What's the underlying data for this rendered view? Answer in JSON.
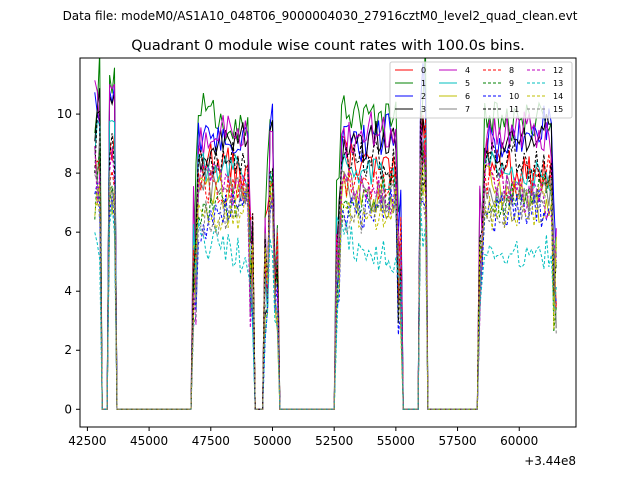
{
  "figure": {
    "suptitle": "Data file: modeM0/AS1A10_048T06_9000004030_27916cztM0_level2_quad_clean.evt"
  },
  "chart_data": {
    "type": "line",
    "title": "Quadrant 0 module wise count rates with 100.0s bins.",
    "xlabel": "",
    "ylabel": "",
    "x_offset_label": "+3.44e8",
    "xlim": [
      42200,
      62300
    ],
    "ylim": [
      -0.6,
      11.9
    ],
    "xticks": [
      42500,
      45000,
      47500,
      50000,
      52500,
      55000,
      57500,
      60000
    ],
    "xtick_labels": [
      "42500",
      "45000",
      "47500",
      "50000",
      "52500",
      "55000",
      "57500",
      "60000"
    ],
    "yticks": [
      0,
      2,
      4,
      6,
      8,
      10
    ],
    "ytick_labels": [
      "0",
      "2",
      "4",
      "6",
      "8",
      "10"
    ],
    "grid": false,
    "legend_position": "top-right",
    "segments": [
      [
        42800,
        43050
      ],
      [
        43400,
        43600
      ],
      [
        46800,
        49200
      ],
      [
        49700,
        50200
      ],
      [
        52600,
        55200
      ],
      [
        56000,
        56200
      ],
      [
        58400,
        61500
      ]
    ],
    "gap_value": 0,
    "series": [
      {
        "name": "0",
        "color": "#ff0000",
        "dashed": false,
        "level": 8.3
      },
      {
        "name": "1",
        "color": "#008000",
        "dashed": false,
        "level": 10.1
      },
      {
        "name": "2",
        "color": "#0000ff",
        "dashed": false,
        "level": 9.4
      },
      {
        "name": "3",
        "color": "#000000",
        "dashed": false,
        "level": 9.0
      },
      {
        "name": "4",
        "color": "#bf00bf",
        "dashed": false,
        "level": 9.1
      },
      {
        "name": "5",
        "color": "#00bfbf",
        "dashed": false,
        "level": 7.9
      },
      {
        "name": "6",
        "color": "#bfbf00",
        "dashed": false,
        "level": 7.3
      },
      {
        "name": "7",
        "color": "#808080",
        "dashed": false,
        "level": 7.6
      },
      {
        "name": "8",
        "color": "#ff0000",
        "dashed": true,
        "level": 7.9
      },
      {
        "name": "9",
        "color": "#008000",
        "dashed": true,
        "level": 7.1
      },
      {
        "name": "10",
        "color": "#0000ff",
        "dashed": true,
        "level": 6.5
      },
      {
        "name": "11",
        "color": "#000000",
        "dashed": true,
        "level": 8.1
      },
      {
        "name": "12",
        "color": "#bf00bf",
        "dashed": true,
        "level": 7.4
      },
      {
        "name": "13",
        "color": "#00bfbf",
        "dashed": true,
        "level": 5.6
      },
      {
        "name": "14",
        "color": "#bfbf00",
        "dashed": true,
        "level": 7.0
      },
      {
        "name": "15",
        "color": "#808080",
        "dashed": true,
        "level": 6.9
      }
    ]
  }
}
